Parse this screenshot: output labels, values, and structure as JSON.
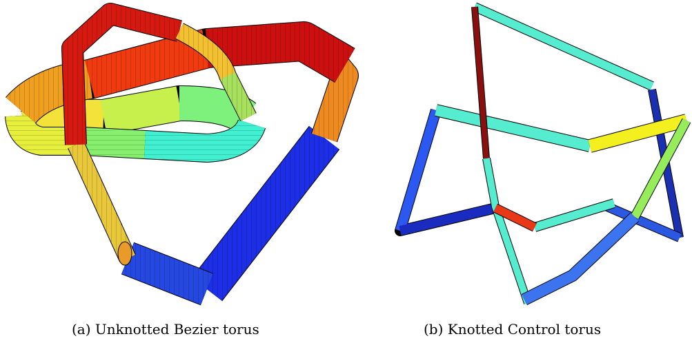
{
  "figure": {
    "caption_a": "(a) Unknotted Bezier torus",
    "caption_b": "(b) Knotted Control torus"
  }
}
